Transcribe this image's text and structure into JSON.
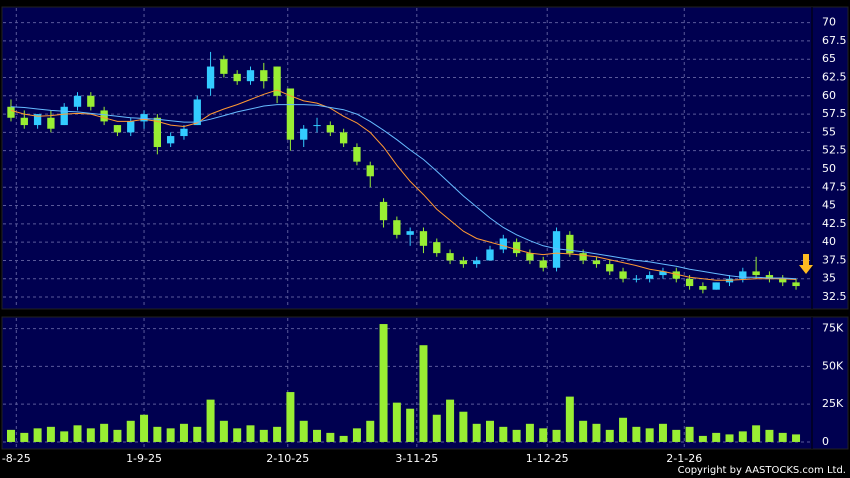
{
  "chart_data": [
    {
      "type": "candlestick",
      "xlim": [
        -0.6,
        60.2
      ],
      "xticks": [
        {
          "value": 0.4,
          "label": "-8-25"
        },
        {
          "value": 10,
          "label": "1-9-25"
        },
        {
          "value": 20.8,
          "label": "2-10-25"
        },
        {
          "value": 30.5,
          "label": "3-11-25"
        },
        {
          "value": 40.3,
          "label": "1-12-25"
        },
        {
          "value": 50.6,
          "label": "2-1-26"
        }
      ],
      "ylim": [
        31,
        72
      ],
      "yticks": [
        32.5,
        35,
        37.5,
        40,
        42.5,
        45,
        47.5,
        50,
        52.5,
        55,
        57.5,
        60,
        62.5,
        65,
        67.5,
        70
      ],
      "grid": true,
      "up_color": "#33ccff",
      "down_color": "#99ee33",
      "open": [
        58.5,
        57,
        56,
        57,
        56,
        58.5,
        60,
        58,
        56,
        55,
        56.5,
        57,
        53.5,
        54.5,
        56,
        61,
        65,
        63,
        62,
        63.5,
        64,
        61,
        54,
        56,
        56,
        55,
        53,
        50.5,
        45.5,
        43,
        41,
        41.5,
        40,
        38.5,
        37.5,
        37,
        37.5,
        39,
        40,
        38.5,
        37.5,
        36.5,
        41,
        38.5,
        37.5,
        37,
        36,
        35,
        35,
        35.5,
        36,
        35,
        34,
        33.5,
        34.5,
        35,
        36,
        35.5,
        35,
        34.5
      ],
      "high": [
        59.5,
        58,
        57.5,
        58,
        59,
        60.5,
        60.5,
        58.5,
        56,
        57,
        58,
        57.5,
        55,
        56,
        60,
        66,
        65.5,
        63.5,
        64,
        64.5,
        64,
        61,
        56,
        57,
        56.5,
        55.5,
        53.5,
        51,
        46,
        43.5,
        42,
        42,
        40.5,
        39,
        38,
        38,
        39.5,
        41,
        40.5,
        39,
        38,
        42,
        41.5,
        39,
        38,
        37.5,
        36.5,
        35.5,
        36,
        36.5,
        36.5,
        35.5,
        34.5,
        34.5,
        35.5,
        36.5,
        38,
        36,
        35.5,
        35
      ],
      "low": [
        56.5,
        55.5,
        55.5,
        55,
        56,
        58,
        58,
        56,
        54.5,
        54.5,
        55.5,
        52,
        53,
        54,
        56,
        60,
        62.5,
        61.5,
        61.5,
        61,
        59,
        52.5,
        53,
        55,
        54.5,
        53,
        50.5,
        47.5,
        42,
        40.5,
        39.5,
        38.5,
        38,
        37,
        36.5,
        36.5,
        37.5,
        38.5,
        38,
        37,
        36,
        36,
        38,
        37,
        36.5,
        35.5,
        34.5,
        34.5,
        34.5,
        35,
        34.5,
        33.5,
        33,
        33.5,
        34,
        34.5,
        35,
        34.5,
        34,
        33.5
      ],
      "close": [
        57,
        56,
        57.5,
        55.5,
        58.5,
        60,
        58.5,
        56.5,
        55,
        56.5,
        57.5,
        53,
        54.5,
        55.5,
        59.5,
        64,
        63,
        62,
        63.5,
        62,
        60,
        54,
        55.5,
        56,
        55,
        53.5,
        51,
        49,
        43,
        41,
        41.5,
        39.5,
        38.5,
        37.5,
        37,
        37.5,
        39,
        40.5,
        38.5,
        37.5,
        36.5,
        41.5,
        38.5,
        37.5,
        37,
        36,
        35,
        35,
        35.5,
        36,
        35,
        34,
        33.5,
        34.5,
        35,
        36,
        35.5,
        35,
        34.5,
        34
      ],
      "ma_lines": [
        {
          "color": "#ff9933",
          "values": [
            58,
            57.5,
            57.2,
            57.3,
            57.5,
            57.6,
            57.5,
            57,
            56.5,
            56.5,
            56.8,
            56.5,
            56,
            55.8,
            56.3,
            57.5,
            58.2,
            58.8,
            59.5,
            60.2,
            60.8,
            60,
            59.3,
            59,
            58.3,
            57.2,
            56.3,
            55,
            53,
            50.5,
            48.3,
            46.5,
            44.5,
            43,
            41.5,
            40.5,
            40,
            39.5,
            39,
            38.5,
            38.3,
            38.5,
            38.4,
            38.2,
            38,
            37.6,
            37.2,
            36.8,
            36.3,
            36,
            35.6,
            35.2,
            35,
            34.8,
            34.8,
            34.9,
            35,
            35,
            35,
            34.9
          ]
        },
        {
          "color": "#66bbff",
          "values": [
            58.5,
            58.4,
            58.2,
            58,
            57.9,
            57.8,
            57.6,
            57.4,
            57.2,
            57,
            56.9,
            56.8,
            56.6,
            56.4,
            56.4,
            56.8,
            57.3,
            57.8,
            58.2,
            58.6,
            58.8,
            58.8,
            58.8,
            58.7,
            58.4,
            58.1,
            57.5,
            56.5,
            55.3,
            54,
            52.6,
            51.3,
            49.7,
            48,
            46.3,
            44.8,
            43.3,
            42,
            41,
            40.2,
            39.5,
            39.1,
            38.9,
            38.7,
            38.4,
            38.1,
            37.8,
            37.5,
            37.3,
            37,
            36.7,
            36.3,
            36,
            35.7,
            35.4,
            35.2,
            35.2,
            35.1,
            35.1,
            35
          ]
        }
      ]
    },
    {
      "type": "bar",
      "color": "#99ee33",
      "ylim": [
        -4000,
        82000
      ],
      "yticks": [
        0,
        {
          "value": 25000,
          "label": "25K"
        },
        {
          "value": 50000,
          "label": "50K"
        },
        {
          "value": 75000,
          "label": "75K"
        }
      ],
      "values": [
        8000,
        6000,
        9000,
        10000,
        7000,
        11000,
        9000,
        12000,
        8000,
        14000,
        18000,
        10000,
        9000,
        12000,
        10000,
        28000,
        14000,
        9000,
        11000,
        8000,
        10000,
        33000,
        14000,
        8000,
        6000,
        4000,
        9000,
        14000,
        78000,
        26000,
        22000,
        64000,
        18000,
        28000,
        20000,
        12000,
        14000,
        10000,
        8000,
        12000,
        9000,
        8000,
        30000,
        14000,
        12000,
        8000,
        16000,
        10000,
        9000,
        12000,
        8000,
        10000,
        4000,
        6000,
        5000,
        7000,
        11000,
        8000,
        6000,
        5000
      ],
      "copyright": "Copyright by AASTOCKS.com Ltd."
    }
  ]
}
